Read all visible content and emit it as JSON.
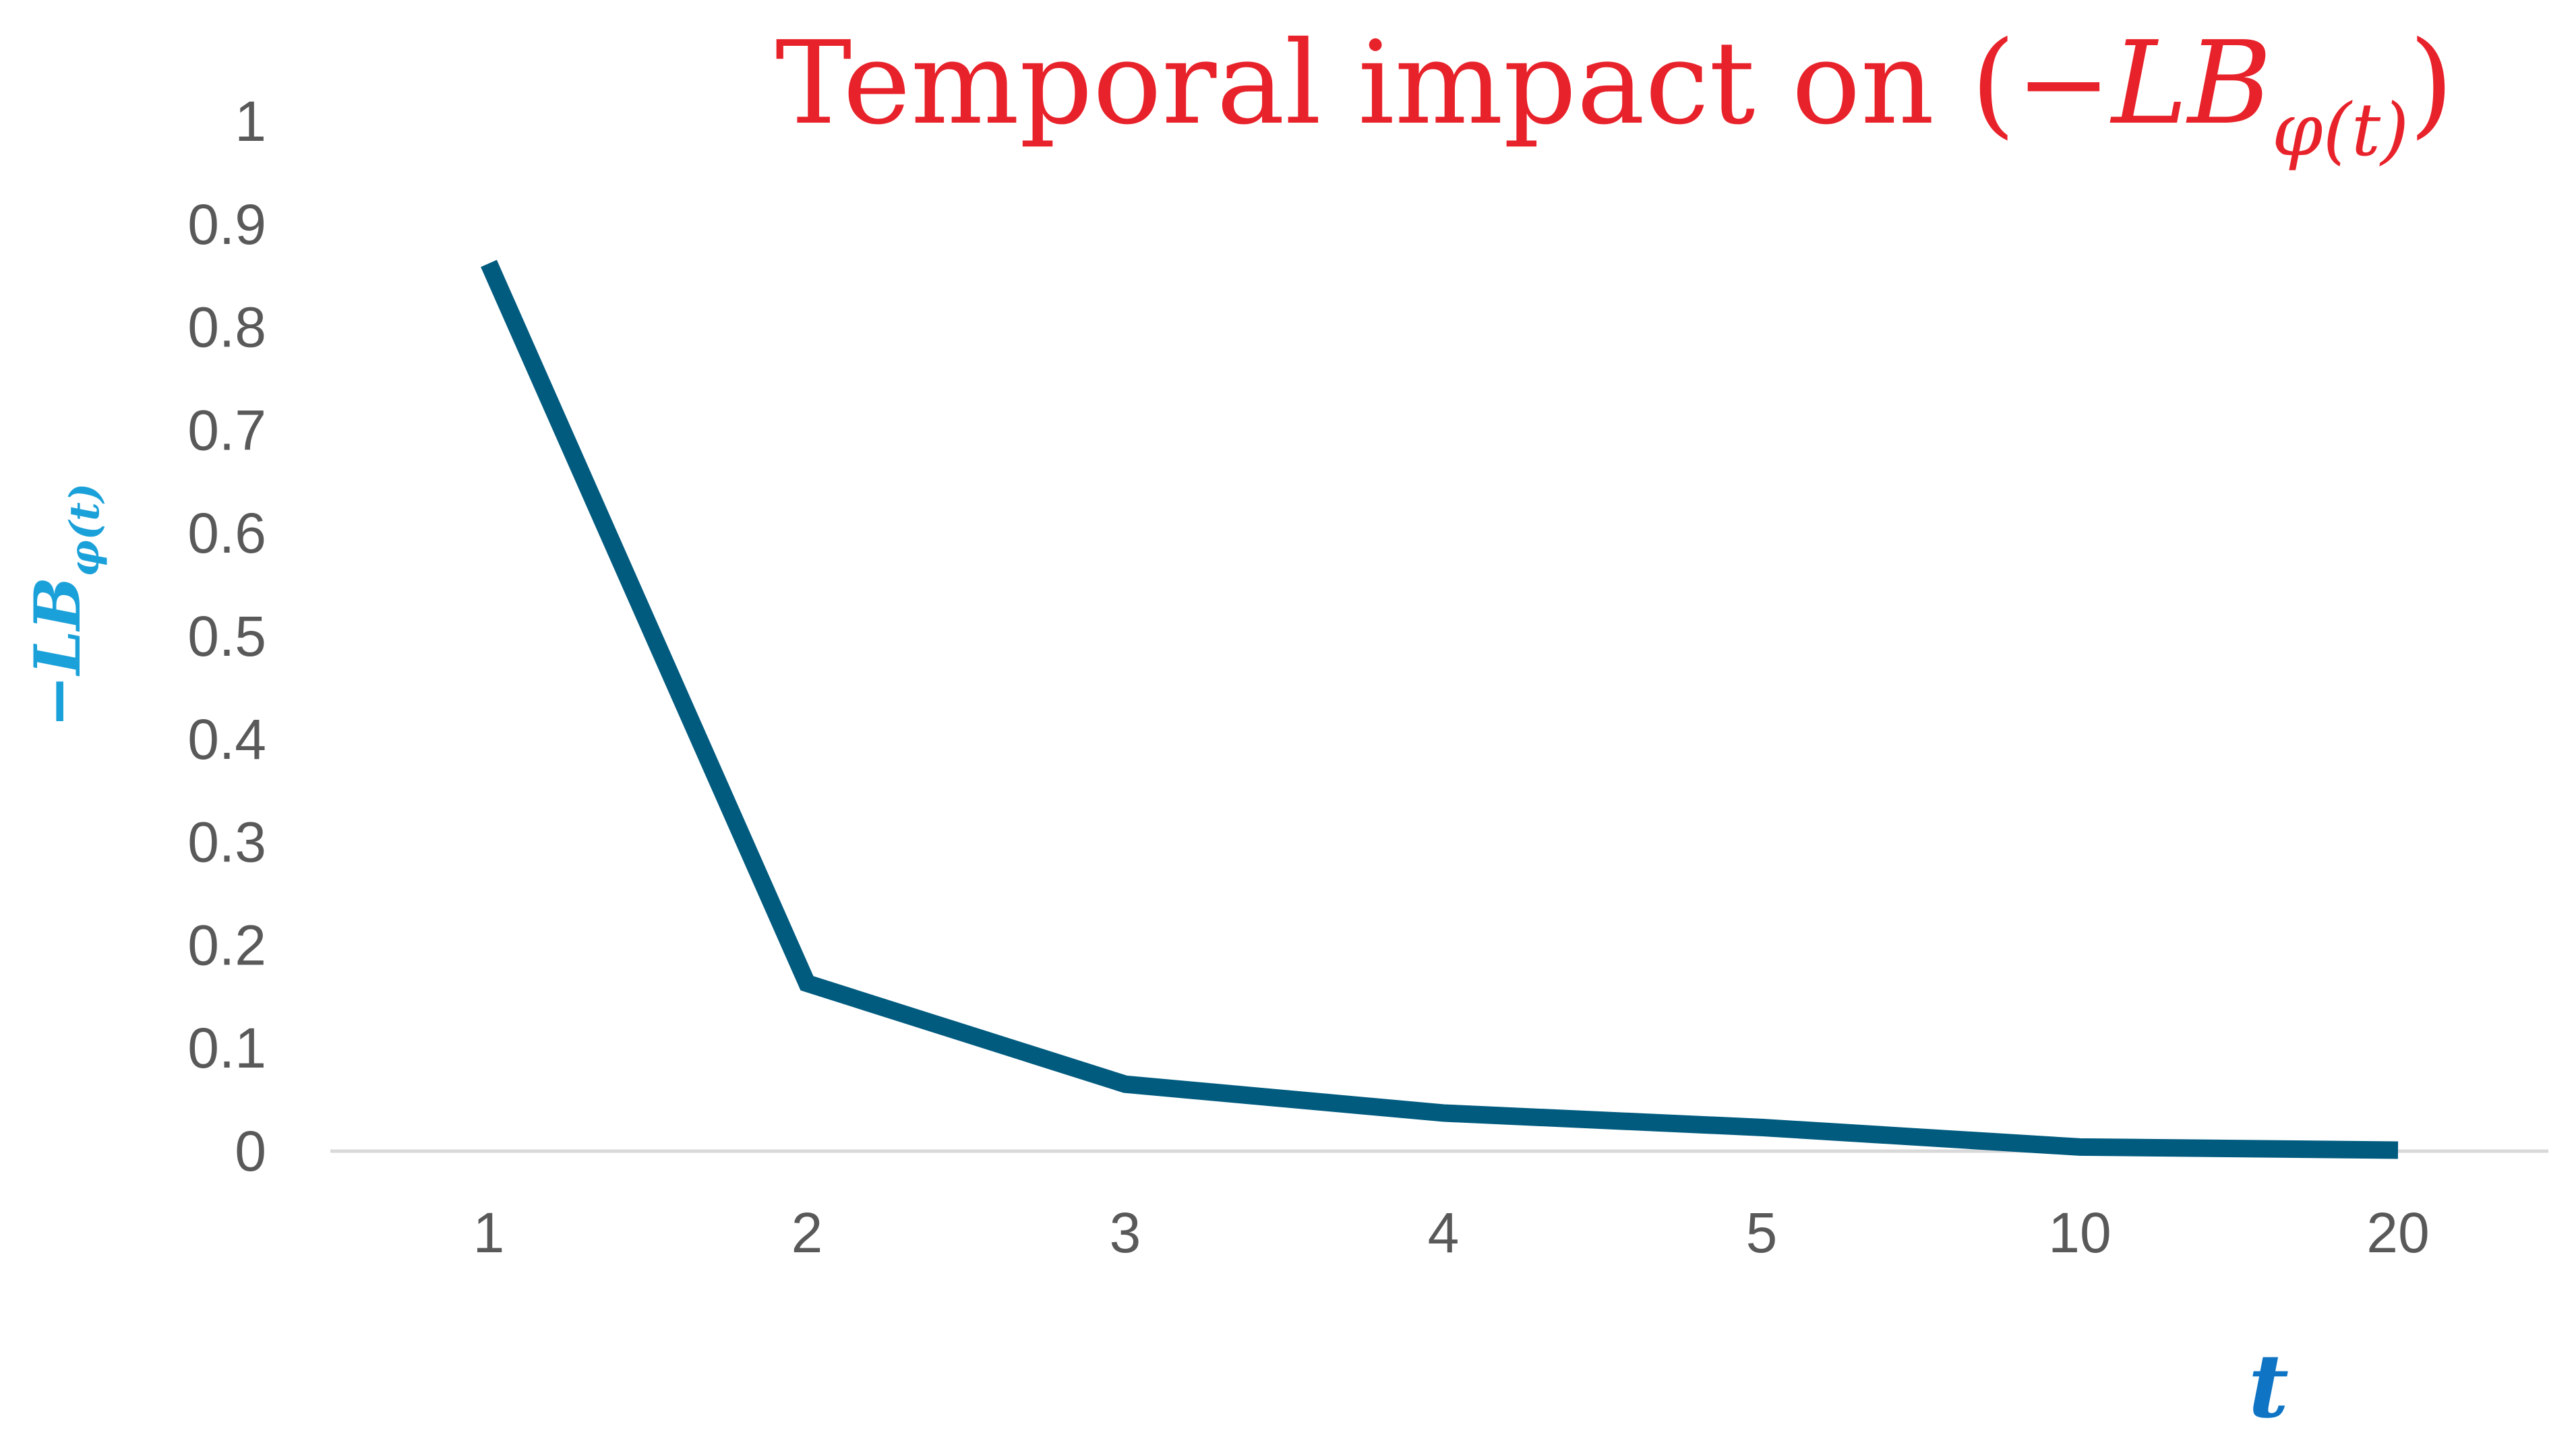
{
  "chart_data": {
    "type": "line",
    "title": {
      "text": "Temporal impact on (−",
      "math_main": "LB",
      "math_sub": "φ(t)",
      "suffix": ")"
    },
    "xlabel": "t",
    "ylabel": {
      "main": "−LB",
      "sub": "φ(t)"
    },
    "categories": [
      "1",
      "2",
      "3",
      "4",
      "5",
      "10",
      "20"
    ],
    "series": [
      {
        "values": [
          0.862,
          0.163,
          0.065,
          0.037,
          0.023,
          0.004,
          0.001
        ]
      }
    ],
    "ylim": [
      0,
      1
    ],
    "yticks": [
      0,
      0.1,
      0.2,
      0.3,
      0.4,
      0.5,
      0.6,
      0.7,
      0.8,
      0.9,
      1
    ],
    "ytick_labels": [
      "0",
      "0.1",
      "0.2",
      "0.3",
      "0.4",
      "0.5",
      "0.6",
      "0.7",
      "0.8",
      "0.9",
      "1"
    ],
    "grid": false,
    "legend": "none"
  },
  "colors": {
    "title": "#e8222a",
    "ylabel": "#1ba1d9",
    "xlabel": "#0f74c4",
    "line": "#005b7f",
    "axis": "#d9d9d9",
    "tick_text": "#595959"
  }
}
